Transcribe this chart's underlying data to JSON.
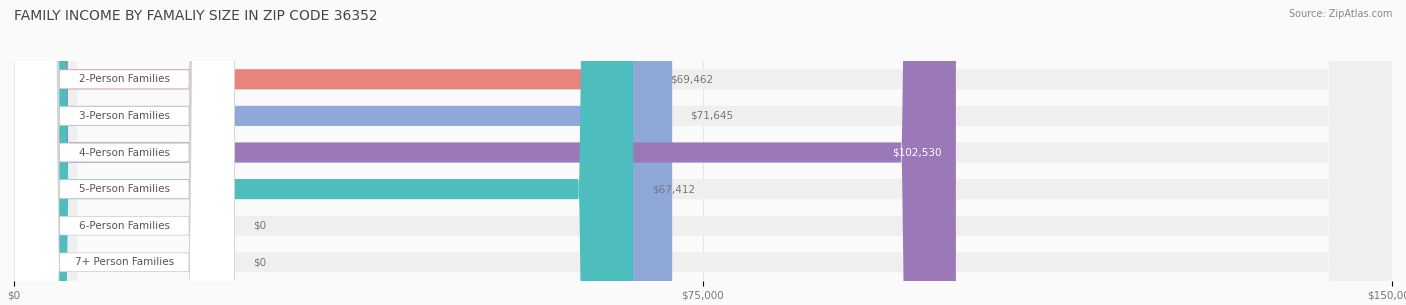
{
  "title": "FAMILY INCOME BY FAMALIY SIZE IN ZIP CODE 36352",
  "source": "Source: ZipAtlas.com",
  "categories": [
    "2-Person Families",
    "3-Person Families",
    "4-Person Families",
    "5-Person Families",
    "6-Person Families",
    "7+ Person Families"
  ],
  "values": [
    69462,
    71645,
    102530,
    67412,
    0,
    0
  ],
  "bar_colors": [
    "#E8847A",
    "#8FA8D8",
    "#9B78B8",
    "#4DBDBE",
    "#A8A8D8",
    "#F0A0B0"
  ],
  "xlim": [
    0,
    150000
  ],
  "xticks": [
    0,
    75000,
    150000
  ],
  "xtick_labels": [
    "$0",
    "$75,000",
    "$150,000"
  ],
  "bar_height": 0.55,
  "figsize": [
    14.06,
    3.05
  ],
  "dpi": 100,
  "title_fontsize": 10,
  "label_fontsize": 7.5,
  "value_fontsize": 7.5,
  "source_fontsize": 7
}
